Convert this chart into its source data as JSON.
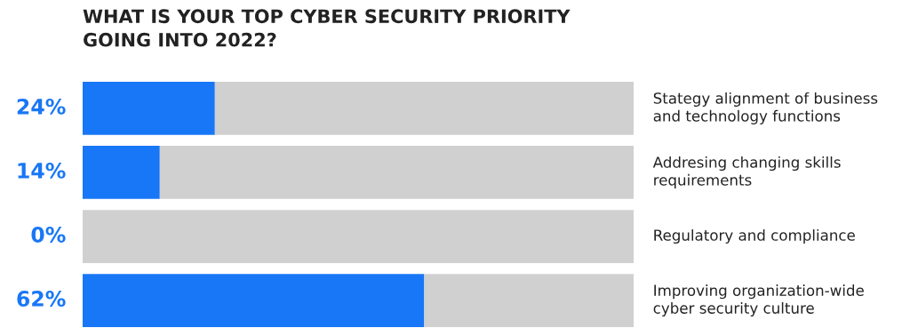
{
  "chart_data": {
    "type": "bar",
    "orientation": "horizontal",
    "stacked": true,
    "title": "WHAT IS YOUR TOP CYBER SECURITY PRIORITY\nGOING INTO 2022?",
    "categories": [
      "Stategy alignment of business\nand technology functions",
      "Addresing changing skills\nrequirements",
      "Regulatory and compliance",
      "Improving organization-wide\ncyber security culture"
    ],
    "series": [
      {
        "color": "#1877f6",
        "values": [
          24,
          14,
          0,
          62
        ],
        "value_labels": [
          "24%",
          "14%",
          "0%",
          "62%"
        ]
      },
      {
        "color": "#d0d0d0",
        "values": [
          76,
          86,
          100,
          38
        ]
      }
    ],
    "xlim": [
      0,
      100
    ],
    "tick_labels": false
  }
}
